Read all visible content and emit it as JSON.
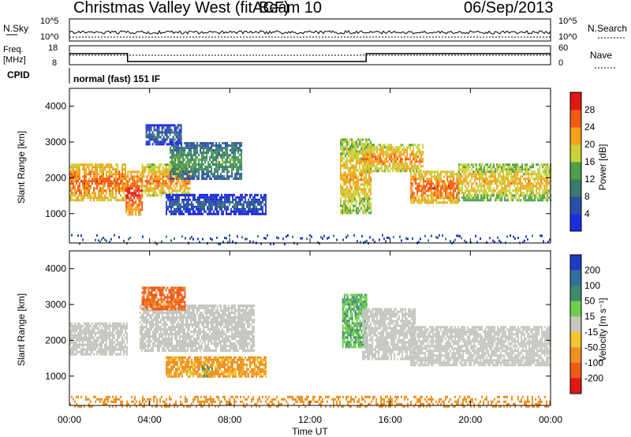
{
  "header": {
    "station": "Christmas Valley West (fitACF)",
    "beam": "Beam 10",
    "date": "06/Sep/2013"
  },
  "sky_panel": {
    "left_label": "N.Sky",
    "left_ticks": [
      "10^5",
      "10^0"
    ],
    "right_ticks": [
      "10^5",
      "10^0"
    ],
    "right_label": "N.Search"
  },
  "freq_panel": {
    "left_label_1": "Freq.",
    "left_label_2": "[MHz]",
    "left_ticks": [
      "18",
      "8"
    ],
    "right_ticks": [
      "60",
      "0"
    ],
    "right_label": "Nave"
  },
  "cpid": {
    "label": "CPID",
    "value": "normal (fast) 151 IF"
  },
  "x_axis": {
    "label": "Time UT",
    "ticks": [
      "00:00",
      "04:00",
      "08:00",
      "12:00",
      "16:00",
      "20:00",
      "00:00"
    ]
  },
  "power_panel": {
    "ylabel": "Slant Range [km]",
    "yticks": [
      "1000",
      "2000",
      "3000",
      "4000"
    ],
    "colorbar_label": "Power [dB]",
    "colorbar_ticks": [
      "4",
      "8",
      "12",
      "16",
      "20",
      "24",
      "28"
    ],
    "colorbar_colors": [
      "#1d2be0",
      "#2a4fa8",
      "#3b7a6e",
      "#4ea04a",
      "#c8d23a",
      "#f7a21a",
      "#f45a14",
      "#e01818"
    ]
  },
  "velocity_panel": {
    "ylabel": "Slant Range [km]",
    "yticks": [
      "1000",
      "2000",
      "3000",
      "4000"
    ],
    "colorbar_label": "Velocity [m s⁻¹]",
    "colorbar_ticks": [
      "200",
      "100",
      "50",
      "15",
      "-15",
      "-50",
      "-100",
      "-200"
    ],
    "colorbar_colors": [
      "#1f3cc0",
      "#2f6fa0",
      "#3e8a6a",
      "#6fd04a",
      "#c6c6c0",
      "#f2c630",
      "#f09020",
      "#f05a1a",
      "#e01818"
    ]
  },
  "chart_data": {
    "type": "heatmap",
    "x_range_hours": [
      0,
      24
    ],
    "y_range_km": [
      180,
      4500
    ],
    "power_regions": [
      {
        "t0": 0.0,
        "t1": 2.8,
        "r0": 1400,
        "r1": 2400,
        "power_db": 26
      },
      {
        "t0": 2.8,
        "t1": 3.6,
        "r0": 1000,
        "r1": 2200,
        "power_db": 28
      },
      {
        "t0": 3.6,
        "t1": 6.0,
        "r0": 1500,
        "r1": 2400,
        "power_db": 24
      },
      {
        "t0": 5.0,
        "t1": 8.6,
        "r0": 2000,
        "r1": 3000,
        "power_db": 14
      },
      {
        "t0": 3.8,
        "t1": 5.6,
        "r0": 2950,
        "r1": 3500,
        "power_db": 9
      },
      {
        "t0": 4.8,
        "t1": 9.8,
        "r0": 1000,
        "r1": 1550,
        "power_db": 8
      },
      {
        "t0": 13.5,
        "t1": 15.0,
        "r0": 1000,
        "r1": 3100,
        "power_db": 22
      },
      {
        "t0": 14.6,
        "t1": 17.6,
        "r0": 2200,
        "r1": 2950,
        "power_db": 24
      },
      {
        "t0": 17.0,
        "t1": 19.4,
        "r0": 1300,
        "r1": 2200,
        "power_db": 26
      },
      {
        "t0": 19.4,
        "t1": 24.0,
        "r0": 1400,
        "r1": 2400,
        "power_db": 22
      }
    ],
    "velocity_regions": [
      {
        "t0": 0.0,
        "t1": 2.9,
        "r0": 1600,
        "r1": 2500,
        "velocity_ms": 0
      },
      {
        "t0": 3.5,
        "t1": 9.2,
        "r0": 1700,
        "r1": 3000,
        "velocity_ms": 0
      },
      {
        "t0": 3.6,
        "t1": 5.8,
        "r0": 2900,
        "r1": 3500,
        "velocity_ms": -80
      },
      {
        "t0": 4.8,
        "t1": 9.8,
        "r0": 1000,
        "r1": 1550,
        "velocity_ms": -40
      },
      {
        "t0": 6.6,
        "t1": 7.2,
        "r0": 1000,
        "r1": 1300,
        "velocity_ms": 40
      },
      {
        "t0": 13.6,
        "t1": 14.8,
        "r0": 1800,
        "r1": 3300,
        "velocity_ms": 30
      },
      {
        "t0": 14.6,
        "t1": 17.2,
        "r0": 1500,
        "r1": 2900,
        "velocity_ms": 0
      },
      {
        "t0": 17.0,
        "t1": 24.0,
        "r0": 1300,
        "r1": 2400,
        "velocity_ms": 0
      },
      {
        "t0": 0.0,
        "t1": 24.0,
        "r0": 180,
        "r1": 450,
        "velocity_ms": -60
      }
    ],
    "frequency_mhz": [
      {
        "t0": 0.0,
        "t1": 2.9,
        "value": 14
      },
      {
        "t0": 2.9,
        "t1": 14.8,
        "value": 9
      },
      {
        "t0": 14.8,
        "t1": 24.0,
        "value": 14
      }
    ]
  }
}
